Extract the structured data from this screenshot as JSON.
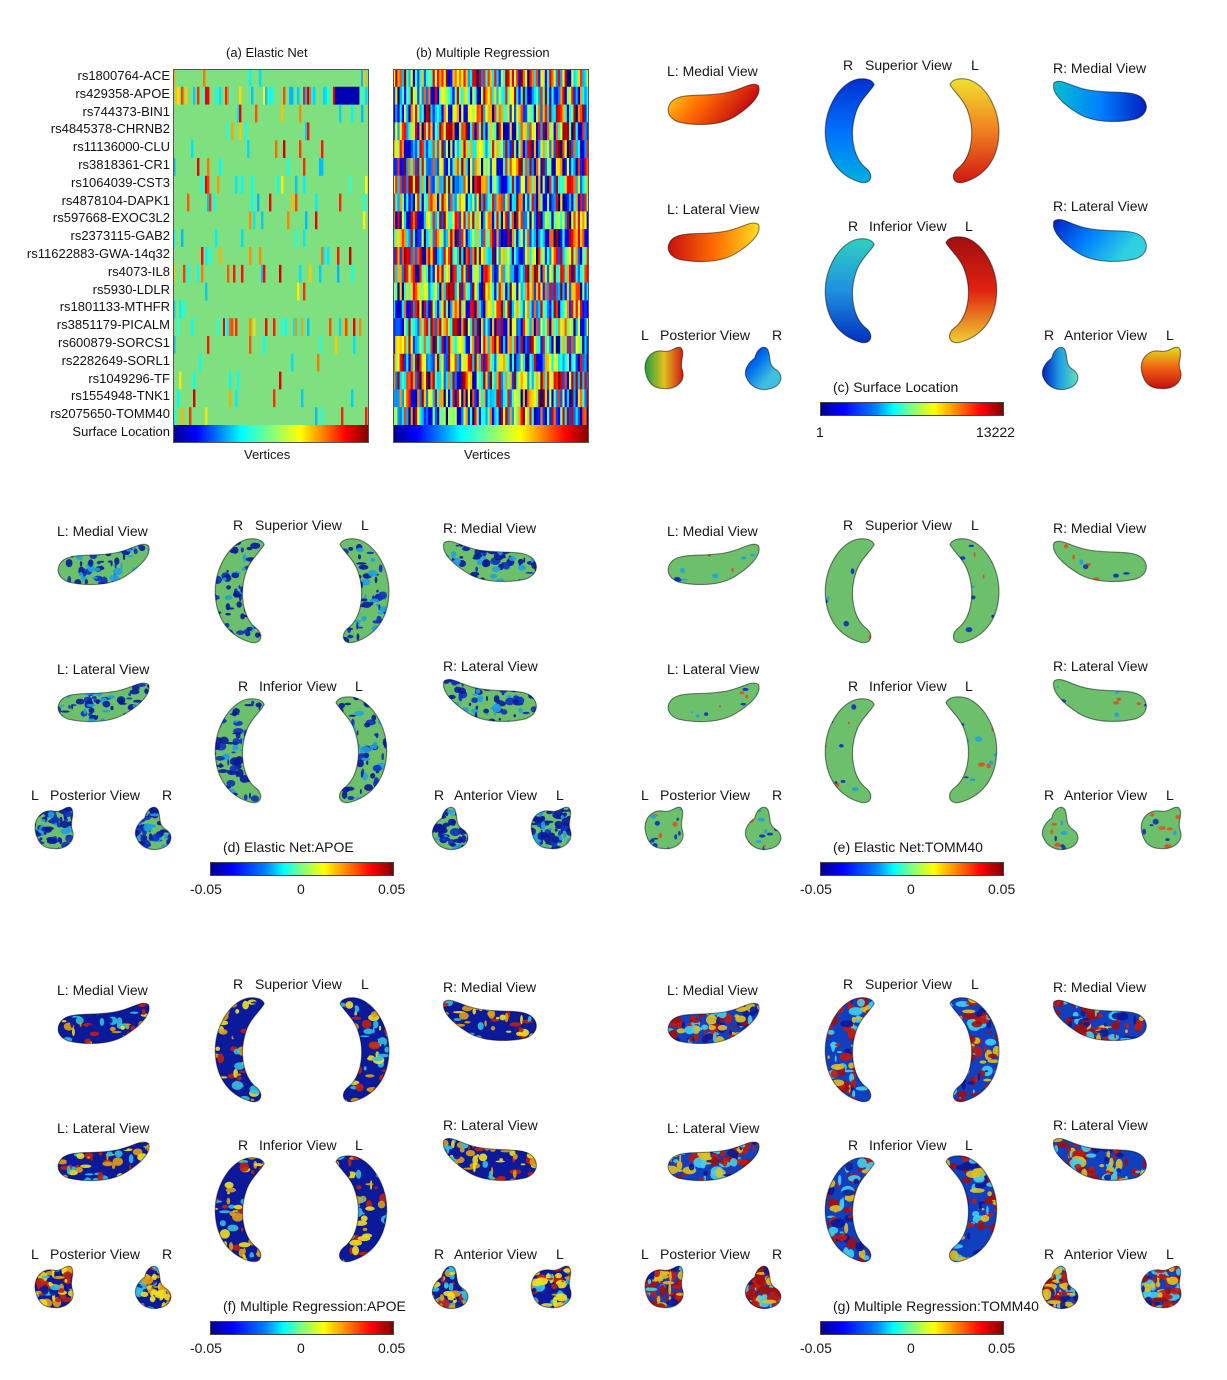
{
  "panels": {
    "a": {
      "title": "(a) Elastic Net",
      "xlabel": "Vertices"
    },
    "b": {
      "title": "(b) Multiple Regression",
      "xlabel": "Vertices"
    },
    "c": {
      "title": "(c) Surface Location",
      "min": "1",
      "max": "13222"
    },
    "d": {
      "title": "(d) Elastic Net:APOE",
      "min": "-0.05",
      "mid": "0",
      "max": "0.05"
    },
    "e": {
      "title": "(e) Elastic Net:TOMM40",
      "min": "-0.05",
      "mid": "0",
      "max": "0.05"
    },
    "f": {
      "title": "(f) Multiple Regression:APOE",
      "min": "-0.05",
      "mid": "0",
      "max": "0.05"
    },
    "g": {
      "title": "(g) Multiple Regression:TOMM40",
      "min": "-0.05",
      "mid": "0",
      "max": "0.05"
    }
  },
  "snps": [
    "rs1800764-ACE",
    "rs429358-APOE",
    "rs744373-BIN1",
    "rs4845378-CHRNB2",
    "rs11136000-CLU",
    "rs3818361-CR1",
    "rs1064039-CST3",
    "rs4878104-DAPK1",
    "rs597668-EXOC3L2",
    "rs2373115-GAB2",
    "rs11622883-GWA-14q32",
    "rs4073-IL8",
    "rs5930-LDLR",
    "rs1801133-MTHFR",
    "rs3851179-PICALM",
    "rs600879-SORCS1",
    "rs2282649-SORL1",
    "rs1049296-TF",
    "rs1554948-TNK1",
    "rs2075650-TOMM40",
    "Surface Location"
  ],
  "views": {
    "l_medial": "L: Medial View",
    "r_medial": "R: Medial View",
    "l_lateral": "L: Lateral View",
    "r_lateral": "R: Lateral View",
    "superior": "Superior View",
    "inferior": "Inferior View",
    "posterior": "Posterior View",
    "anterior": "Anterior View",
    "R": "R",
    "L": "L"
  }
}
